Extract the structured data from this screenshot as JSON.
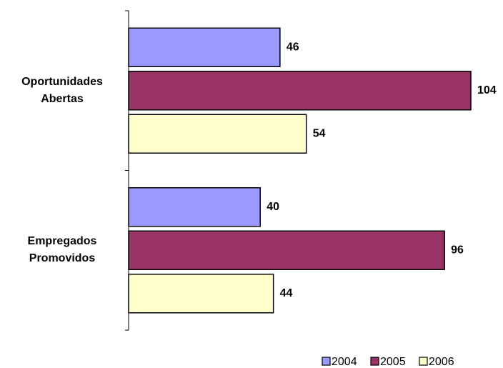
{
  "chart_data": {
    "type": "bar",
    "orientation": "horizontal",
    "categories": [
      "Oportunidades Abertas",
      "Empregados Promovidos"
    ],
    "series": [
      {
        "name": "2004",
        "color": "#9999ff",
        "values": [
          46,
          40
        ]
      },
      {
        "name": "2005",
        "color": "#993366",
        "values": [
          104,
          96
        ]
      },
      {
        "name": "2006",
        "color": "#ffffcc",
        "values": [
          54,
          44
        ]
      }
    ],
    "legend": "bottom-right"
  }
}
